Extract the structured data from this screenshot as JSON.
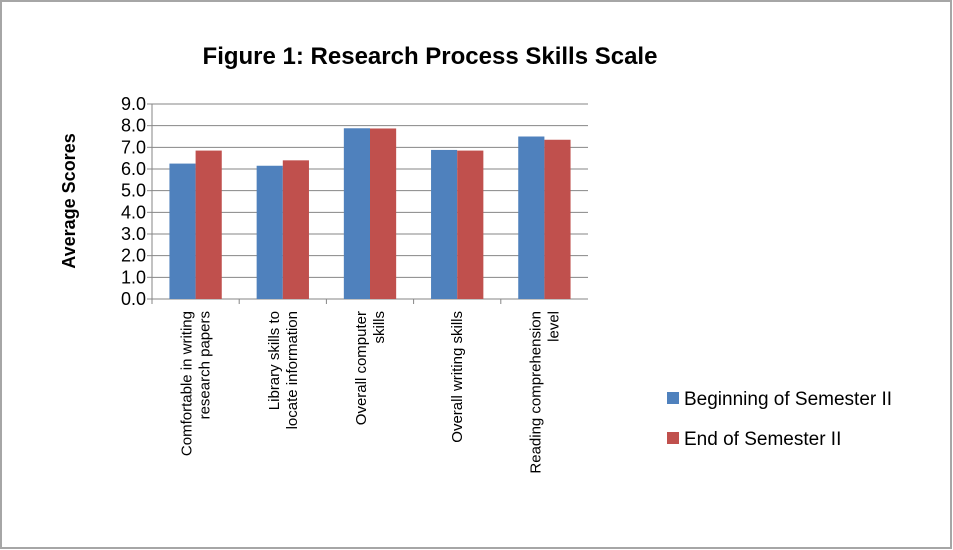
{
  "chart_data": {
    "type": "bar",
    "title": "Figure 1: Research Process Skills Scale",
    "ylabel": "Average Scores",
    "categories": [
      "Comfortable in writing research papers",
      "Library skills to locate information",
      "Overall computer skills",
      "Overall writing skills",
      "Reading comprehension level"
    ],
    "series": [
      {
        "name": "Beginning of Semester II",
        "color": "#4f81bd",
        "values": [
          6.25,
          6.15,
          7.88,
          6.88,
          7.5
        ]
      },
      {
        "name": "End of Semester II",
        "color": "#c0504d",
        "values": [
          6.85,
          6.4,
          7.87,
          6.85,
          7.35
        ]
      }
    ],
    "ylim": [
      0,
      9
    ],
    "yticks": [
      {
        "value": 0,
        "label": "0.0"
      },
      {
        "value": 1,
        "label": "1.0"
      },
      {
        "value": 2,
        "label": "2.0"
      },
      {
        "value": 3,
        "label": "3.0"
      },
      {
        "value": 4,
        "label": "4.0"
      },
      {
        "value": 5,
        "label": "5.0"
      },
      {
        "value": 6,
        "label": "6.0"
      },
      {
        "value": 7,
        "label": "7.0"
      },
      {
        "value": 8,
        "label": "8.0"
      },
      {
        "value": 9,
        "label": "9.0"
      }
    ],
    "grid": true,
    "legend": "right"
  }
}
